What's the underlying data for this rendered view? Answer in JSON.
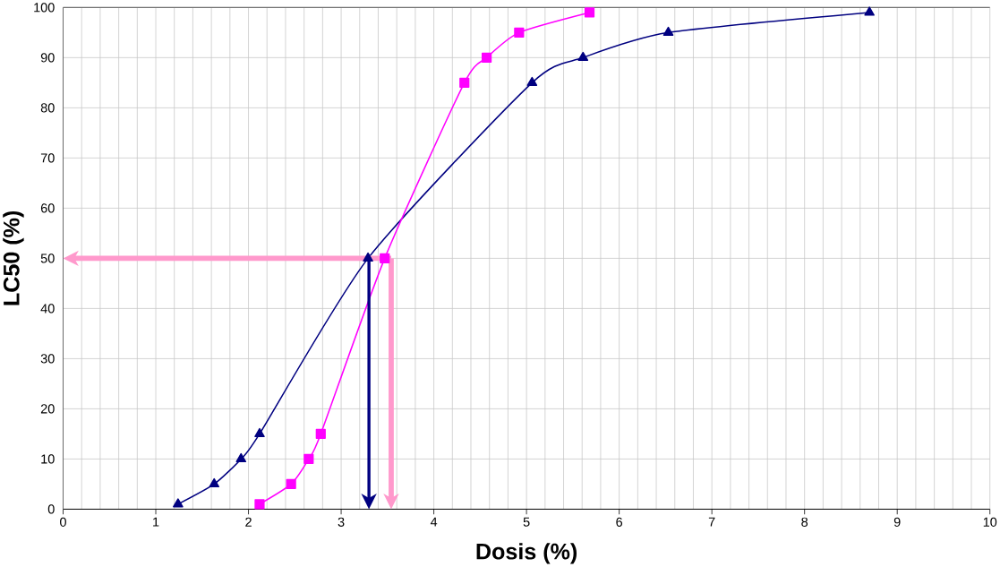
{
  "chart_data": {
    "type": "line",
    "xlabel": "Dosis  (%)",
    "ylabel": "LC50 (%)",
    "xlim": [
      0,
      10
    ],
    "ylim": [
      0,
      100
    ],
    "xticks": [
      0,
      1,
      2,
      3,
      4,
      5,
      6,
      7,
      8,
      9,
      10
    ],
    "yticks": [
      0,
      10,
      20,
      30,
      40,
      50,
      60,
      70,
      80,
      90,
      100
    ],
    "grid": true,
    "series": [
      {
        "color": "#000080",
        "marker": "triangle",
        "x": [
          1.24,
          1.63,
          1.92,
          2.12,
          3.29,
          5.06,
          5.61,
          6.53,
          8.7
        ],
        "values": [
          1,
          5,
          10,
          15,
          50,
          85,
          90,
          95,
          99
        ]
      },
      {
        "color": "#ff00ff",
        "marker": "square",
        "x": [
          2.12,
          2.46,
          2.65,
          2.78,
          3.47,
          4.33,
          4.57,
          4.92,
          5.68
        ],
        "values": [
          1,
          5,
          10,
          15,
          50,
          85,
          90,
          95,
          99
        ]
      }
    ],
    "ref_lines": [
      {
        "axis": "y",
        "value": 50,
        "color": "#ff99cc"
      },
      {
        "axis": "x",
        "value": 3.54,
        "color": "#ff99cc"
      },
      {
        "axis": "x",
        "value": 3.3,
        "color": "#000080"
      }
    ]
  }
}
